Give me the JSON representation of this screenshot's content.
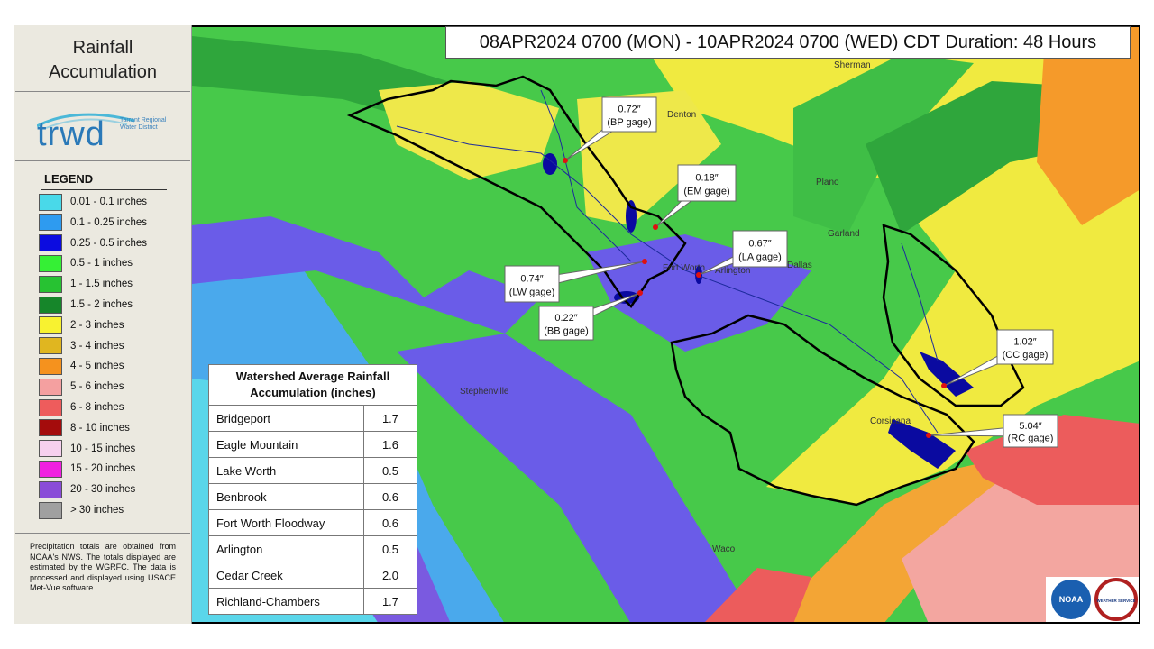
{
  "sidebar": {
    "title": "Rainfall Accumulation",
    "logo": {
      "text": "trwd",
      "subtext": "Tarrant Regional Water District"
    },
    "legend": {
      "title": "LEGEND",
      "items": [
        {
          "label": "0.01 - 0.1 inches",
          "color": "#49d9e9"
        },
        {
          "label": "0.1 - 0.25 inches",
          "color": "#2e9bf0"
        },
        {
          "label": "0.25 - 0.5 inches",
          "color": "#0c0ce0"
        },
        {
          "label": "0.5 - 1 inches",
          "color": "#35f035"
        },
        {
          "label": "1 - 1.5 inches",
          "color": "#27c232"
        },
        {
          "label": "1.5 - 2 inches",
          "color": "#16862a"
        },
        {
          "label": "2 - 3 inches",
          "color": "#f8f230"
        },
        {
          "label": "3 - 4 inches",
          "color": "#e0b620"
        },
        {
          "label": "4 - 5 inches",
          "color": "#f5921e"
        },
        {
          "label": "5 - 6 inches",
          "color": "#f4a0a0"
        },
        {
          "label": "6 - 8 inches",
          "color": "#ee5c5c"
        },
        {
          "label": "8 - 10 inches",
          "color": "#a40c0c"
        },
        {
          "label": "10 - 15 inches",
          "color": "#f6d0ee"
        },
        {
          "label": "15 - 20 inches",
          "color": "#f020e0"
        },
        {
          "label": "20 - 30 inches",
          "color": "#8a4cd8"
        },
        {
          "label": "> 30 inches",
          "color": "#a0a0a0"
        }
      ]
    },
    "note": "Precipitation totals are obtained from NOAA's NWS. The totals displayed are estimated by the WGRFC. The data is processed and displayed using USACE Met-Vue software"
  },
  "header": "08APR2024 0700 (MON) - 10APR2024 0700 (WED) CDT Duration: 48 Hours",
  "table": {
    "title": "Watershed Average Rainfall Accumulation (inches)",
    "rows": [
      [
        "Bridgeport",
        "1.7"
      ],
      [
        "Eagle Mountain",
        "1.6"
      ],
      [
        "Lake Worth",
        "0.5"
      ],
      [
        "Benbrook",
        "0.6"
      ],
      [
        "Fort Worth Floodway",
        "0.6"
      ],
      [
        "Arlington",
        "0.5"
      ],
      [
        "Cedar Creek",
        "2.0"
      ],
      [
        "Richland-Chambers",
        "1.7"
      ]
    ]
  },
  "gages": [
    {
      "value": "0.72″",
      "name": "(BP gage)"
    },
    {
      "value": "0.18″",
      "name": "(EM gage)"
    },
    {
      "value": "0.67″",
      "name": "(LA gage)"
    },
    {
      "value": "0.74″",
      "name": "(LW gage)"
    },
    {
      "value": "0.22″",
      "name": "(BB gage)"
    },
    {
      "value": "1.02″",
      "name": "(CC gage)"
    },
    {
      "value": "5.04″",
      "name": "(RC gage)"
    }
  ],
  "places": [
    "Plano",
    "Garland",
    "Dallas",
    "Fort Worth",
    "Arlington",
    "Stephenville",
    "Corsicana",
    "Waco",
    "Denton",
    "Sherman"
  ],
  "badges": {
    "noaa": "NOAA",
    "nws": "WEATHER SERVICE"
  }
}
